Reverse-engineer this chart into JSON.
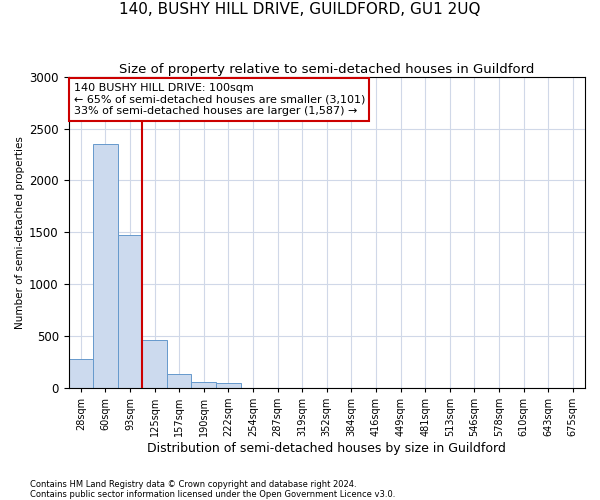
{
  "title": "140, BUSHY HILL DRIVE, GUILDFORD, GU1 2UQ",
  "subtitle": "Size of property relative to semi-detached houses in Guildford",
  "xlabel": "Distribution of semi-detached houses by size in Guildford",
  "ylabel": "Number of semi-detached properties",
  "footer_line1": "Contains HM Land Registry data © Crown copyright and database right 2024.",
  "footer_line2": "Contains public sector information licensed under the Open Government Licence v3.0.",
  "annotation_title": "140 BUSHY HILL DRIVE: 100sqm",
  "annotation_line1": "← 65% of semi-detached houses are smaller (3,101)",
  "annotation_line2": "33% of semi-detached houses are larger (1,587) →",
  "bar_categories": [
    "28sqm",
    "60sqm",
    "93sqm",
    "125sqm",
    "157sqm",
    "190sqm",
    "222sqm",
    "254sqm",
    "287sqm",
    "319sqm",
    "352sqm",
    "384sqm",
    "416sqm",
    "449sqm",
    "481sqm",
    "513sqm",
    "546sqm",
    "578sqm",
    "610sqm",
    "643sqm",
    "675sqm"
  ],
  "bar_values": [
    280,
    2350,
    1470,
    460,
    130,
    55,
    50,
    0,
    0,
    0,
    0,
    0,
    0,
    0,
    0,
    0,
    0,
    0,
    0,
    0,
    0
  ],
  "bar_color": "#ccdaee",
  "bar_edge_color": "#6699cc",
  "red_line_color": "#cc0000",
  "grid_color": "#d0d8e8",
  "ylim": [
    0,
    3000
  ],
  "yticks": [
    0,
    500,
    1000,
    1500,
    2000,
    2500,
    3000
  ],
  "title_fontsize": 11,
  "subtitle_fontsize": 9.5,
  "annotation_box_color": "#ffffff",
  "annotation_box_edge_color": "#cc0000",
  "bin_edges": [
    12,
    44,
    76,
    108,
    140,
    172,
    204,
    236,
    268,
    300,
    332,
    364,
    396,
    428,
    460,
    492,
    524,
    556,
    588,
    620,
    652,
    684
  ],
  "red_line_x": 93
}
